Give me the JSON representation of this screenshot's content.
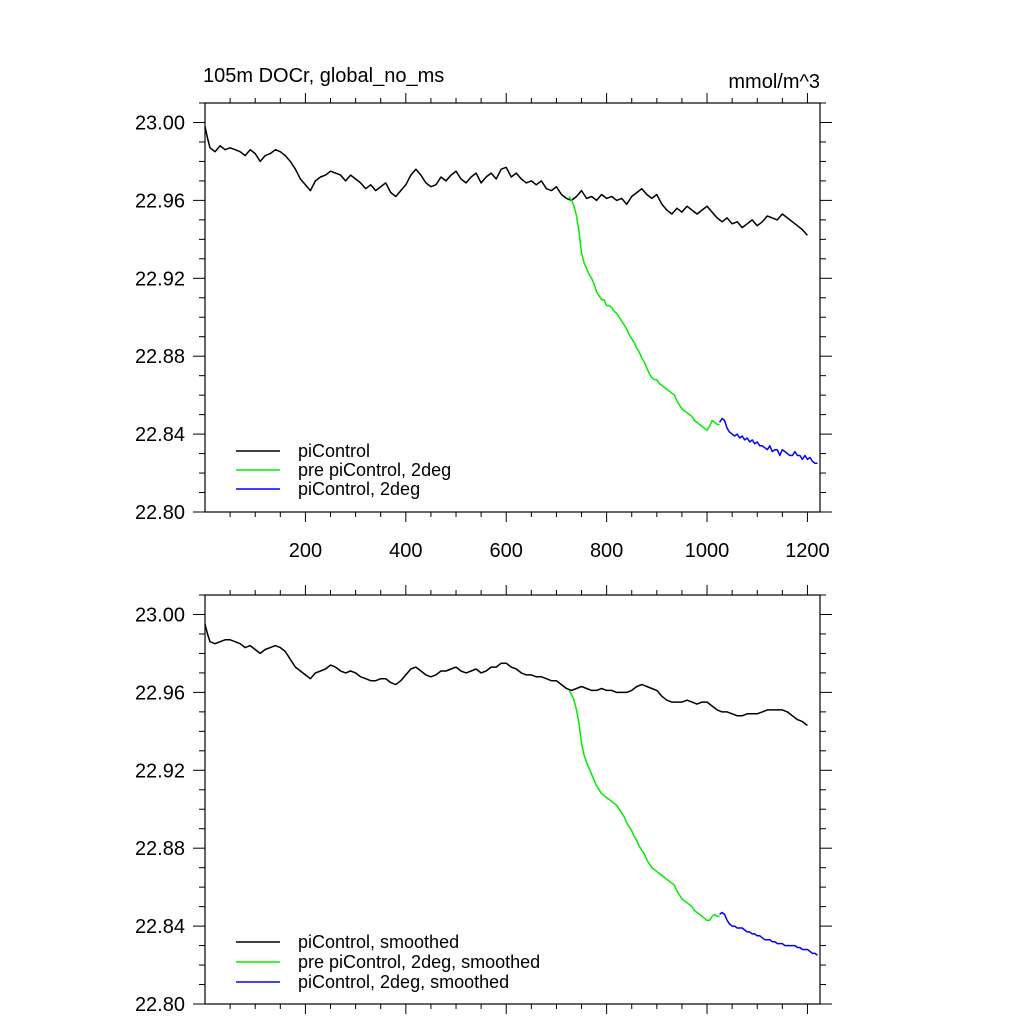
{
  "figure": {
    "title_left": "105m DOCr, global_no_ms",
    "title_right": "mmol/m^3"
  },
  "chart_data": [
    {
      "type": "line",
      "xlim": [
        0,
        1225
      ],
      "ylim": [
        22.8,
        23.01
      ],
      "xticks": [
        200,
        400,
        600,
        800,
        1000,
        1200
      ],
      "xtick_labels": [
        "200",
        "400",
        "600",
        "800",
        "1000",
        "1200"
      ],
      "yticks": [
        22.8,
        22.84,
        22.88,
        22.92,
        22.96,
        23.0
      ],
      "ytick_labels": [
        "22.80",
        "22.84",
        "22.88",
        "22.92",
        "22.96",
        "23.00"
      ],
      "grid": false,
      "legend_placement": "bottom-left",
      "series": [
        {
          "name": "piControl",
          "color": "#000000",
          "x": [
            0,
            5,
            10,
            20,
            30,
            40,
            50,
            60,
            70,
            80,
            90,
            100,
            110,
            120,
            130,
            140,
            150,
            160,
            170,
            180,
            190,
            200,
            210,
            220,
            230,
            240,
            250,
            260,
            270,
            280,
            290,
            300,
            310,
            320,
            330,
            340,
            350,
            360,
            370,
            380,
            390,
            400,
            410,
            420,
            430,
            440,
            450,
            460,
            470,
            480,
            490,
            500,
            510,
            520,
            530,
            540,
            550,
            560,
            570,
            580,
            590,
            600,
            610,
            620,
            630,
            640,
            650,
            660,
            670,
            680,
            690,
            700,
            710,
            720,
            730,
            740,
            750,
            760,
            770,
            780,
            790,
            800,
            810,
            820,
            830,
            840,
            850,
            860,
            870,
            880,
            890,
            900,
            910,
            920,
            930,
            940,
            950,
            960,
            970,
            980,
            990,
            1000,
            1010,
            1020,
            1030,
            1040,
            1050,
            1060,
            1070,
            1080,
            1090,
            1100,
            1110,
            1120,
            1130,
            1140,
            1150,
            1160,
            1170,
            1180,
            1190,
            1200
          ],
          "y": [
            22.998,
            22.992,
            22.987,
            22.985,
            22.988,
            22.986,
            22.987,
            22.986,
            22.985,
            22.983,
            22.986,
            22.984,
            22.98,
            22.983,
            22.984,
            22.986,
            22.985,
            22.983,
            22.98,
            22.976,
            22.971,
            22.968,
            22.965,
            22.97,
            22.972,
            22.973,
            22.975,
            22.974,
            22.973,
            22.97,
            22.973,
            22.971,
            22.969,
            22.966,
            22.968,
            22.965,
            22.967,
            22.969,
            22.964,
            22.962,
            22.965,
            22.968,
            22.973,
            22.976,
            22.973,
            22.969,
            22.967,
            22.968,
            22.972,
            22.97,
            22.973,
            22.975,
            22.971,
            22.969,
            22.972,
            22.974,
            22.969,
            22.972,
            22.974,
            22.971,
            22.976,
            22.977,
            22.972,
            22.974,
            22.971,
            22.969,
            22.97,
            22.968,
            22.97,
            22.966,
            22.965,
            22.967,
            22.963,
            22.961,
            22.96,
            22.962,
            22.965,
            22.961,
            22.962,
            22.96,
            22.963,
            22.961,
            22.962,
            22.96,
            22.961,
            22.958,
            22.962,
            22.964,
            22.966,
            22.963,
            22.961,
            22.963,
            22.958,
            22.955,
            22.953,
            22.956,
            22.954,
            22.957,
            22.955,
            22.953,
            22.955,
            22.957,
            22.954,
            22.951,
            22.949,
            22.951,
            22.948,
            22.949,
            22.946,
            22.948,
            22.95,
            22.947,
            22.949,
            22.952,
            22.951,
            22.95,
            22.953,
            22.951,
            22.949,
            22.947,
            22.945,
            22.942
          ]
        },
        {
          "name": "pre piControl, 2deg",
          "color": "#00ee00",
          "x": [
            725,
            730,
            735,
            740,
            745,
            750,
            755,
            760,
            765,
            770,
            775,
            780,
            785,
            790,
            795,
            800,
            805,
            810,
            815,
            820,
            825,
            830,
            835,
            840,
            845,
            850,
            855,
            860,
            865,
            870,
            875,
            880,
            885,
            890,
            895,
            900,
            905,
            910,
            915,
            920,
            925,
            930,
            935,
            940,
            945,
            950,
            955,
            960,
            965,
            970,
            975,
            980,
            985,
            990,
            995,
            1000,
            1005,
            1010,
            1015,
            1020,
            1025
          ],
          "y": [
            22.962,
            22.96,
            22.957,
            22.952,
            22.944,
            22.933,
            22.928,
            22.925,
            22.922,
            22.92,
            22.917,
            22.913,
            22.911,
            22.909,
            22.909,
            22.906,
            22.906,
            22.905,
            22.903,
            22.902,
            22.9,
            22.898,
            22.896,
            22.894,
            22.891,
            22.889,
            22.887,
            22.884,
            22.882,
            22.879,
            22.877,
            22.874,
            22.871,
            22.869,
            22.868,
            22.868,
            22.866,
            22.865,
            22.864,
            22.863,
            22.862,
            22.861,
            22.86,
            22.857,
            22.855,
            22.853,
            22.852,
            22.851,
            22.85,
            22.849,
            22.847,
            22.846,
            22.845,
            22.844,
            22.843,
            22.842,
            22.844,
            22.847,
            22.846,
            22.845,
            22.845
          ]
        },
        {
          "name": "piControl, 2deg",
          "color": "#0000ff",
          "x": [
            1025,
            1030,
            1035,
            1040,
            1045,
            1050,
            1055,
            1060,
            1065,
            1070,
            1075,
            1080,
            1085,
            1090,
            1095,
            1100,
            1105,
            1110,
            1115,
            1120,
            1125,
            1130,
            1135,
            1140,
            1145,
            1150,
            1155,
            1160,
            1165,
            1170,
            1175,
            1180,
            1185,
            1190,
            1195,
            1200,
            1205,
            1210,
            1215,
            1220
          ],
          "y": [
            22.846,
            22.848,
            22.847,
            22.843,
            22.841,
            22.84,
            22.839,
            22.84,
            22.838,
            22.839,
            22.837,
            22.838,
            22.836,
            22.837,
            22.835,
            22.836,
            22.834,
            22.834,
            22.833,
            22.832,
            22.834,
            22.831,
            22.832,
            22.832,
            22.829,
            22.832,
            22.831,
            22.83,
            22.829,
            22.829,
            22.831,
            22.829,
            22.829,
            22.827,
            22.829,
            22.827,
            22.828,
            22.826,
            22.825,
            22.825
          ]
        }
      ]
    },
    {
      "type": "line",
      "xlim": [
        0,
        1225
      ],
      "ylim": [
        22.8,
        23.01
      ],
      "xticks": [
        200,
        400,
        600,
        800,
        1000,
        1200
      ],
      "yticks": [
        22.8,
        22.84,
        22.88,
        22.92,
        22.96,
        23.0
      ],
      "ytick_labels": [
        "22.80",
        "22.84",
        "22.88",
        "22.92",
        "22.96",
        "23.00"
      ],
      "grid": false,
      "legend_placement": "bottom-left",
      "series": [
        {
          "name": "piControl, smoothed",
          "color": "#000000",
          "x": [
            0,
            5,
            10,
            20,
            30,
            40,
            50,
            60,
            70,
            80,
            90,
            100,
            110,
            120,
            130,
            140,
            150,
            160,
            170,
            180,
            190,
            200,
            210,
            220,
            230,
            240,
            250,
            260,
            270,
            280,
            290,
            300,
            310,
            320,
            330,
            340,
            350,
            360,
            370,
            380,
            390,
            400,
            410,
            420,
            430,
            440,
            450,
            460,
            470,
            480,
            490,
            500,
            510,
            520,
            530,
            540,
            550,
            560,
            570,
            580,
            590,
            600,
            610,
            620,
            630,
            640,
            650,
            660,
            670,
            680,
            690,
            700,
            710,
            720,
            730,
            740,
            750,
            760,
            770,
            780,
            790,
            800,
            810,
            820,
            830,
            840,
            850,
            860,
            870,
            880,
            890,
            900,
            910,
            920,
            930,
            940,
            950,
            960,
            970,
            980,
            990,
            1000,
            1010,
            1020,
            1030,
            1040,
            1050,
            1060,
            1070,
            1080,
            1090,
            1100,
            1110,
            1120,
            1130,
            1140,
            1150,
            1160,
            1170,
            1180,
            1190,
            1200
          ],
          "y": [
            22.995,
            22.99,
            22.986,
            22.985,
            22.986,
            22.987,
            22.987,
            22.986,
            22.985,
            22.983,
            22.984,
            22.982,
            22.98,
            22.982,
            22.983,
            22.984,
            22.983,
            22.981,
            22.977,
            22.973,
            22.971,
            22.969,
            22.967,
            22.97,
            22.971,
            22.972,
            22.974,
            22.973,
            22.971,
            22.97,
            22.971,
            22.97,
            22.968,
            22.967,
            22.966,
            22.966,
            22.967,
            22.967,
            22.965,
            22.964,
            22.966,
            22.969,
            22.972,
            22.973,
            22.971,
            22.969,
            22.968,
            22.969,
            22.971,
            22.971,
            22.972,
            22.973,
            22.971,
            22.97,
            22.971,
            22.972,
            22.97,
            22.971,
            22.973,
            22.973,
            22.975,
            22.975,
            22.973,
            22.972,
            22.97,
            22.969,
            22.969,
            22.968,
            22.968,
            22.967,
            22.966,
            22.966,
            22.964,
            22.962,
            22.961,
            22.962,
            22.963,
            22.962,
            22.961,
            22.961,
            22.962,
            22.961,
            22.961,
            22.96,
            22.96,
            22.96,
            22.961,
            22.963,
            22.964,
            22.963,
            22.962,
            22.961,
            22.958,
            22.956,
            22.955,
            22.955,
            22.955,
            22.956,
            22.955,
            22.954,
            22.955,
            22.955,
            22.953,
            22.951,
            22.95,
            22.95,
            22.949,
            22.948,
            22.948,
            22.949,
            22.949,
            22.949,
            22.95,
            22.951,
            22.951,
            22.951,
            22.951,
            22.95,
            22.948,
            22.946,
            22.945,
            22.943
          ]
        },
        {
          "name": "pre piControl, 2deg, smoothed",
          "color": "#00ee00",
          "x": [
            725,
            730,
            735,
            740,
            745,
            750,
            755,
            760,
            765,
            770,
            775,
            780,
            785,
            790,
            795,
            800,
            805,
            810,
            815,
            820,
            825,
            830,
            835,
            840,
            845,
            850,
            855,
            860,
            865,
            870,
            875,
            880,
            885,
            890,
            895,
            900,
            905,
            910,
            915,
            920,
            925,
            930,
            935,
            940,
            945,
            950,
            955,
            960,
            965,
            970,
            975,
            980,
            985,
            990,
            995,
            1000,
            1005,
            1010,
            1015,
            1020,
            1025
          ],
          "y": [
            22.961,
            22.959,
            22.956,
            22.951,
            22.944,
            22.934,
            22.928,
            22.924,
            22.921,
            22.918,
            22.915,
            22.912,
            22.91,
            22.908,
            22.907,
            22.906,
            22.905,
            22.904,
            22.903,
            22.902,
            22.9,
            22.898,
            22.896,
            22.893,
            22.891,
            22.889,
            22.886,
            22.884,
            22.881,
            22.879,
            22.877,
            22.874,
            22.872,
            22.87,
            22.869,
            22.868,
            22.867,
            22.866,
            22.865,
            22.864,
            22.863,
            22.862,
            22.861,
            22.858,
            22.856,
            22.854,
            22.853,
            22.852,
            22.851,
            22.85,
            22.848,
            22.847,
            22.846,
            22.845,
            22.844,
            22.843,
            22.843,
            22.845,
            22.846,
            22.845,
            22.845
          ]
        },
        {
          "name": "piControl, 2deg, smoothed",
          "color": "#0000ff",
          "x": [
            1025,
            1030,
            1035,
            1040,
            1045,
            1050,
            1055,
            1060,
            1065,
            1070,
            1075,
            1080,
            1085,
            1090,
            1095,
            1100,
            1105,
            1110,
            1115,
            1120,
            1125,
            1130,
            1135,
            1140,
            1145,
            1150,
            1155,
            1160,
            1165,
            1170,
            1175,
            1180,
            1185,
            1190,
            1195,
            1200,
            1205,
            1210,
            1215,
            1220
          ],
          "y": [
            22.846,
            22.847,
            22.846,
            22.843,
            22.841,
            22.84,
            22.84,
            22.839,
            22.839,
            22.839,
            22.838,
            22.837,
            22.837,
            22.836,
            22.836,
            22.835,
            22.835,
            22.834,
            22.833,
            22.833,
            22.833,
            22.832,
            22.832,
            22.831,
            22.831,
            22.831,
            22.83,
            22.83,
            22.83,
            22.83,
            22.83,
            22.829,
            22.829,
            22.828,
            22.828,
            22.828,
            22.827,
            22.826,
            22.826,
            22.825
          ]
        }
      ]
    }
  ]
}
